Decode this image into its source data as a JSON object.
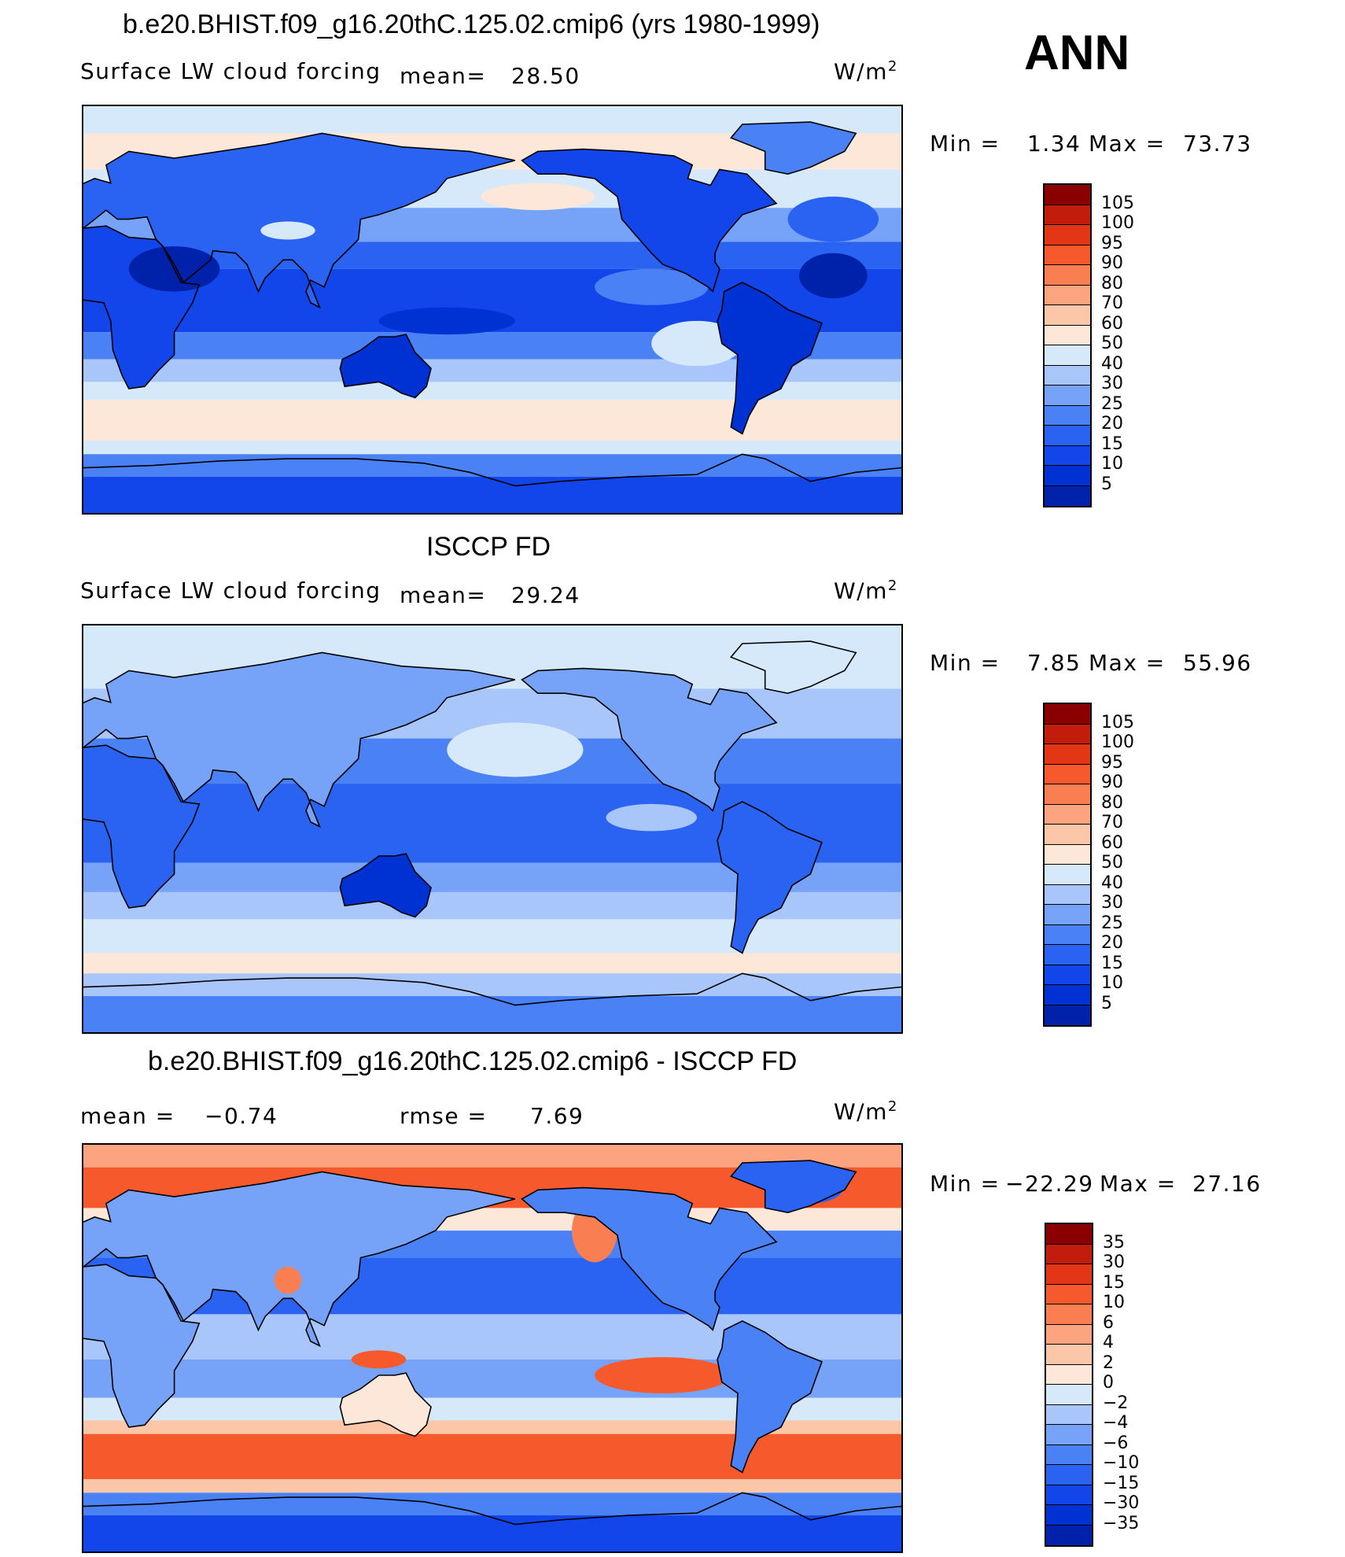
{
  "season": "ANN",
  "colors": {
    "main_scale": [
      "#00127a",
      "#0022aa",
      "#0031d2",
      "#1246ea",
      "#2a63f2",
      "#4a82f5",
      "#76a2f7",
      "#a8c6fa",
      "#d6e9fb",
      "#fde7d9",
      "#fcc6a8",
      "#fba47f",
      "#f97e52",
      "#f65a2c",
      "#e23616",
      "#c11c0c",
      "#8a0000"
    ],
    "diff_scale": [
      "#00127a",
      "#0022aa",
      "#0031d2",
      "#1246ea",
      "#2a63f2",
      "#4a82f5",
      "#76a2f7",
      "#a8c6fa",
      "#d6e9fb",
      "#fde7d9",
      "#fcc6a8",
      "#fba47f",
      "#f97e52",
      "#f65a2c",
      "#e23616",
      "#c11c0c",
      "#8a0000"
    ]
  },
  "panels": [
    {
      "title": "b.e20.BHIST.f09_g16.20thC.125.02.cmip6 (yrs 1980-1999)",
      "left_label": "Surface LW cloud forcing",
      "mean_label": "mean=",
      "mean_value": "28.50",
      "units": "W/m",
      "units_sup": "2",
      "min_label": "Min =",
      "min_value": "1.34",
      "max_label": "Max =",
      "max_value": "73.73",
      "levels": [
        "105",
        "100",
        "95",
        "90",
        "80",
        "70",
        "60",
        "50",
        "40",
        "30",
        "25",
        "20",
        "15",
        "10",
        "5"
      ],
      "map_style": "model"
    },
    {
      "title": "ISCCP FD",
      "left_label": "Surface LW cloud forcing",
      "mean_label": "mean=",
      "mean_value": "29.24",
      "units": "W/m",
      "units_sup": "2",
      "min_label": "Min =",
      "min_value": "7.85",
      "max_label": "Max =",
      "max_value": "55.96",
      "levels": [
        "105",
        "100",
        "95",
        "90",
        "80",
        "70",
        "60",
        "50",
        "40",
        "30",
        "25",
        "20",
        "15",
        "10",
        "5"
      ],
      "map_style": "obs"
    },
    {
      "title": "b.e20.BHIST.f09_g16.20thC.125.02.cmip6 - ISCCP FD",
      "left_label": "mean =",
      "mean_value": "−0.74",
      "rmse_label": "rmse =",
      "rmse_value": "7.69",
      "units": "W/m",
      "units_sup": "2",
      "min_label": "Min =",
      "min_value": "−22.29",
      "max_label": "Max =",
      "max_value": "27.16",
      "levels": [
        "35",
        "30",
        "15",
        "10",
        "6",
        "4",
        "2",
        "0",
        "−2",
        "−4",
        "−6",
        "−10",
        "−15",
        "−30",
        "−35"
      ],
      "map_style": "diff"
    }
  ]
}
